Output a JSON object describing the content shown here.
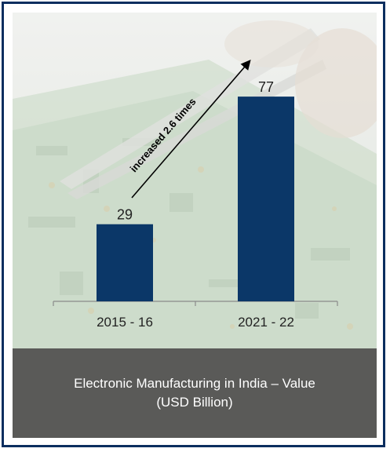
{
  "chart_data": {
    "type": "bar",
    "categories": [
      "2015 - 16",
      "2021 - 22"
    ],
    "values": [
      29,
      77
    ],
    "data_labels": [
      "29",
      "77"
    ],
    "ylim": [
      0,
      85
    ],
    "grid": false,
    "title_line1": "Electronic Manufacturing in India – Value",
    "title_line2": "(USD Billion)",
    "annotation": "increased 2.6 times",
    "colors": {
      "bar": "#0b3768",
      "caption_bg": "#5a5a58",
      "frame": "#0b2e5f"
    }
  }
}
